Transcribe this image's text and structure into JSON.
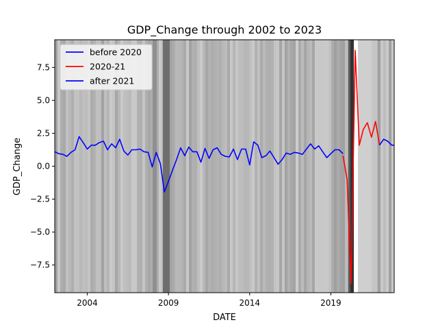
{
  "chart_data": {
    "type": "line",
    "title": "GDP_Change through 2002 to 2023",
    "xlabel": "DATE",
    "ylabel": "GDP_Change",
    "xlim": [
      2002.0,
      2022.9
    ],
    "ylim": [
      -9.6,
      9.6
    ],
    "x_ticks": [
      {
        "value": 2004,
        "label": "2004"
      },
      {
        "value": 2009,
        "label": "2009"
      },
      {
        "value": 2014,
        "label": "2014"
      },
      {
        "value": 2019,
        "label": "2019"
      }
    ],
    "y_ticks": [
      {
        "value": 7.5,
        "label": "7.5"
      },
      {
        "value": 5.0,
        "label": "5.0"
      },
      {
        "value": 2.5,
        "label": "2.5"
      },
      {
        "value": 0.0,
        "label": "0.0"
      },
      {
        "value": -2.5,
        "label": "−2.5"
      },
      {
        "value": -5.0,
        "label": "−5.0"
      },
      {
        "value": -7.5,
        "label": "−7.5"
      }
    ],
    "legend_position": "top-left",
    "series": [
      {
        "name": "before 2020",
        "color": "#0000ff",
        "x": [
          2002.0,
          2002.25,
          2002.5,
          2002.75,
          2003.0,
          2003.25,
          2003.5,
          2003.75,
          2004.0,
          2004.25,
          2004.5,
          2004.75,
          2005.0,
          2005.25,
          2005.5,
          2005.75,
          2006.0,
          2006.25,
          2006.5,
          2006.75,
          2007.0,
          2007.25,
          2007.5,
          2007.75,
          2008.0,
          2008.25,
          2008.5,
          2008.75,
          2009.0,
          2009.25,
          2009.5,
          2009.75,
          2010.0,
          2010.25,
          2010.5,
          2010.75,
          2011.0,
          2011.25,
          2011.5,
          2011.75,
          2012.0,
          2012.25,
          2012.5,
          2012.75,
          2013.0,
          2013.25,
          2013.5,
          2013.75,
          2014.0,
          2014.25,
          2014.5,
          2014.75,
          2015.0,
          2015.25,
          2015.5,
          2015.75,
          2016.0,
          2016.25,
          2016.5,
          2016.75,
          2017.0,
          2017.25,
          2017.5,
          2017.75,
          2018.0,
          2018.25,
          2018.5,
          2018.75,
          2019.0,
          2019.25,
          2019.5,
          2019.75
        ],
        "values": [
          1.1,
          0.95,
          0.9,
          0.75,
          1.05,
          1.25,
          2.25,
          1.8,
          1.3,
          1.6,
          1.6,
          1.8,
          1.9,
          1.25,
          1.7,
          1.4,
          2.05,
          1.15,
          0.85,
          1.25,
          1.25,
          1.3,
          1.1,
          1.05,
          -0.05,
          1.05,
          0.2,
          -1.95,
          -1.15,
          -0.3,
          0.5,
          1.4,
          0.8,
          1.45,
          1.1,
          1.1,
          0.3,
          1.35,
          0.6,
          1.25,
          1.4,
          0.9,
          0.75,
          0.7,
          1.3,
          0.5,
          1.3,
          1.3,
          0.1,
          1.85,
          1.6,
          0.65,
          0.8,
          1.15,
          0.65,
          0.15,
          0.5,
          1.0,
          0.9,
          1.05,
          1.0,
          0.9,
          1.3,
          1.7,
          1.3,
          1.55,
          1.1,
          0.65,
          0.95,
          1.25,
          1.25,
          0.95
        ]
      },
      {
        "name": "2020-21",
        "color": "#ff0000",
        "x": [
          2019.75,
          2020.0,
          2020.25,
          2020.5,
          2020.75,
          2021.0,
          2021.25,
          2021.5,
          2021.75,
          2022.0
        ],
        "values": [
          0.8,
          -1.0,
          -8.9,
          8.8,
          1.6,
          2.8,
          3.3,
          2.2,
          3.4,
          1.6
        ]
      },
      {
        "name": "after 2021",
        "color": "#0000ff",
        "x": [
          2022.0,
          2022.25,
          2022.5,
          2022.75,
          2022.9
        ],
        "values": [
          1.6,
          2.05,
          1.9,
          1.6,
          1.6
        ]
      }
    ]
  }
}
